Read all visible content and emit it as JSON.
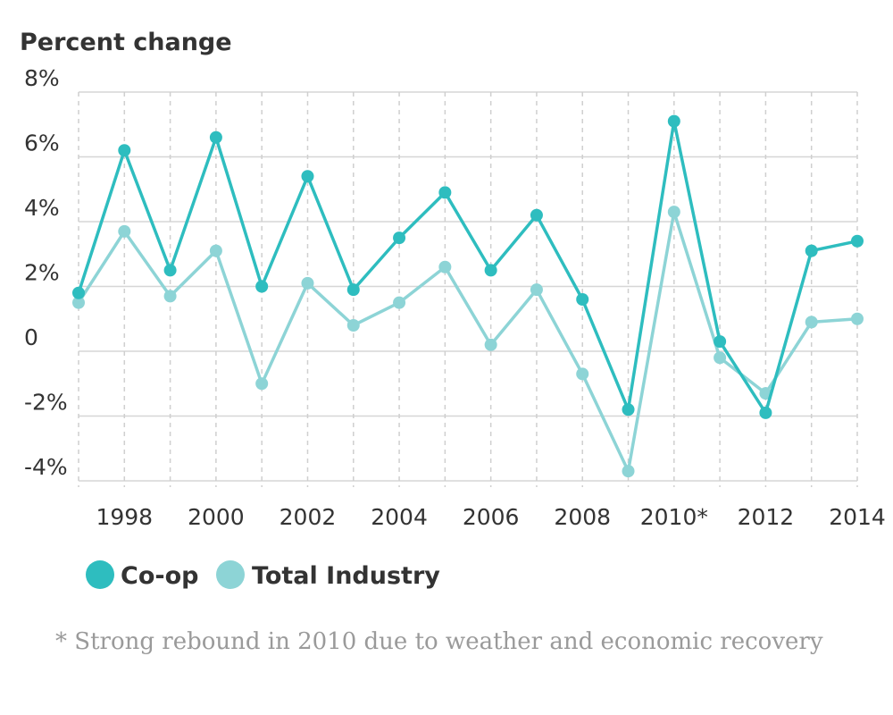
{
  "chart_data": {
    "type": "line",
    "ylabel": "Percent change",
    "x": [
      1997,
      1998,
      1999,
      2000,
      2001,
      2002,
      2003,
      2004,
      2005,
      2006,
      2007,
      2008,
      2009,
      2010,
      2011,
      2012,
      2013,
      2014
    ],
    "xtick_labels": [
      {
        "x": 1998,
        "label": "1998"
      },
      {
        "x": 2000,
        "label": "2000"
      },
      {
        "x": 2002,
        "label": "2002"
      },
      {
        "x": 2004,
        "label": "2004"
      },
      {
        "x": 2006,
        "label": "2006"
      },
      {
        "x": 2008,
        "label": "2008"
      },
      {
        "x": 2010,
        "label": "2010*"
      },
      {
        "x": 2012,
        "label": "2012"
      },
      {
        "x": 2014,
        "label": "2014"
      }
    ],
    "yticks": [
      {
        "value": 8,
        "label": "8%"
      },
      {
        "value": 6,
        "label": "6%"
      },
      {
        "value": 4,
        "label": "4%"
      },
      {
        "value": 2,
        "label": "2%"
      },
      {
        "value": 0,
        "label": "0"
      },
      {
        "value": -2,
        "label": "-2%"
      },
      {
        "value": -4,
        "label": "-4%"
      }
    ],
    "ylim": [
      -4.5,
      8
    ],
    "xlim": [
      1997,
      2014
    ],
    "grid": true,
    "legend_position": "bottom-left",
    "series": [
      {
        "name": "Co-op",
        "color": "#2ebdbf",
        "values": [
          1.8,
          6.2,
          2.5,
          6.6,
          2.0,
          5.4,
          1.9,
          3.5,
          4.9,
          2.5,
          4.2,
          1.6,
          -1.8,
          7.1,
          0.3,
          -1.9,
          3.1,
          3.4
        ]
      },
      {
        "name": "Total Industry",
        "color": "#8dd4d6",
        "values": [
          1.5,
          3.7,
          1.7,
          3.1,
          -1.0,
          2.1,
          0.8,
          1.5,
          2.6,
          0.2,
          1.9,
          -0.7,
          -3.7,
          4.3,
          -0.2,
          -1.3,
          0.9,
          1.0
        ]
      }
    ],
    "footnote": "* Strong rebound in 2010 due to weather and economic recovery"
  }
}
